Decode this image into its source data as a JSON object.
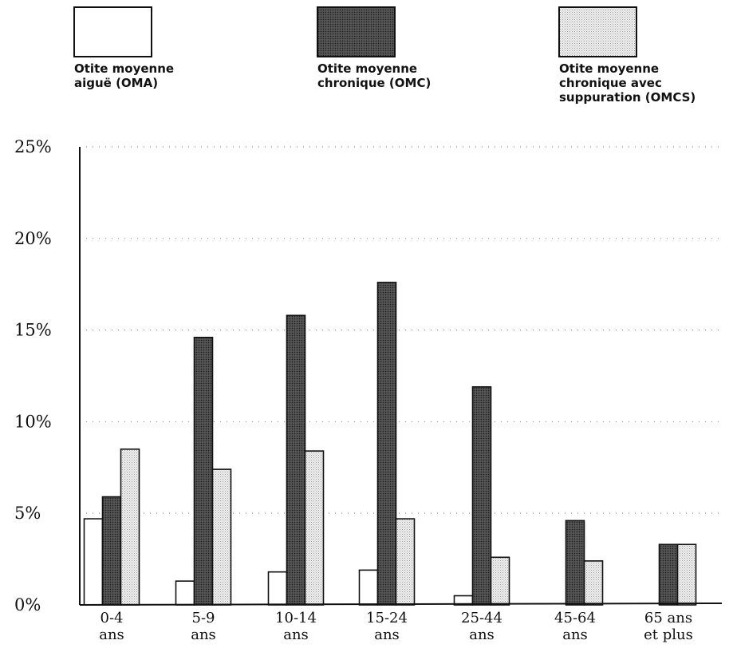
{
  "chart_data": {
    "type": "bar",
    "categories": [
      [
        "0-4",
        "ans"
      ],
      [
        "5-9",
        "ans"
      ],
      [
        "10-14",
        "ans"
      ],
      [
        "15-24",
        "ans"
      ],
      [
        "25-44",
        "ans"
      ],
      [
        "45-64",
        "ans"
      ],
      [
        "65 ans",
        "et plus"
      ]
    ],
    "series": [
      {
        "name": [
          "Otite moyenne",
          "aiguë (OMA)"
        ],
        "color": "#ffffff",
        "values": [
          4.7,
          1.3,
          1.8,
          1.9,
          0.5,
          null,
          null
        ]
      },
      {
        "name": [
          "Otite moyenne",
          "chronique (OMC)"
        ],
        "color": "#3c3c3c",
        "values": [
          5.9,
          14.6,
          15.8,
          17.6,
          11.9,
          4.6,
          3.3
        ]
      },
      {
        "name": [
          "Otite moyenne",
          "chronique avec",
          "suppuration (OMCS)"
        ],
        "color": "#e2e2e2",
        "values": [
          8.5,
          7.4,
          8.4,
          4.7,
          2.6,
          2.4,
          3.3
        ]
      }
    ],
    "yticks": [
      "0%",
      "5%",
      "10%",
      "15%",
      "20%",
      "25%"
    ],
    "ylim": [
      0,
      25
    ],
    "title": "",
    "xlabel": "",
    "ylabel": "",
    "grid": true,
    "legend_position": "top"
  }
}
